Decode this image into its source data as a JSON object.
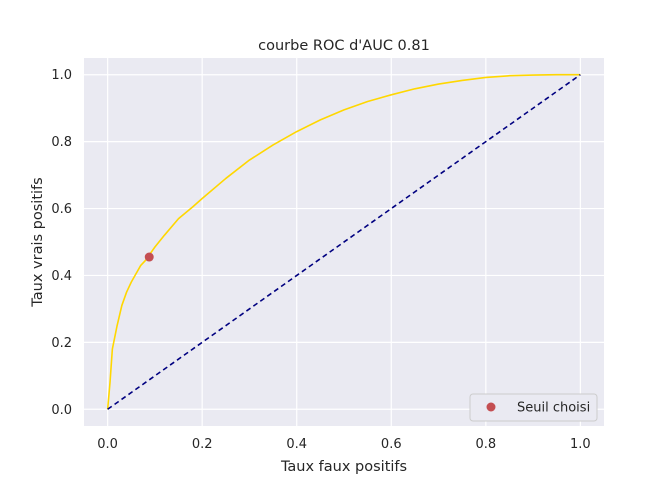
{
  "chart_data": {
    "type": "line",
    "title": "courbe ROC d'AUC 0.81",
    "xlabel": "Taux faux positifs",
    "ylabel": "Taux vrais positifs",
    "xlim": [
      -0.05,
      1.05
    ],
    "ylim": [
      -0.05,
      1.05
    ],
    "xticks": [
      0.0,
      0.2,
      0.4,
      0.6,
      0.8,
      1.0
    ],
    "yticks": [
      0.0,
      0.2,
      0.4,
      0.6,
      0.8,
      1.0
    ],
    "xtick_labels": [
      "0.0",
      "0.2",
      "0.4",
      "0.6",
      "0.8",
      "1.0"
    ],
    "ytick_labels": [
      "0.0",
      "0.2",
      "0.4",
      "0.6",
      "0.8",
      "1.0"
    ],
    "grid": true,
    "legend_position": "bottom-right",
    "colors": {
      "background": "#eaeaf2",
      "grid": "#ffffff",
      "roc": "#ffd700",
      "diagonal": "#000080",
      "marker": "#c44e52"
    },
    "series": [
      {
        "style": "solid",
        "color": "#ffd700",
        "x": [
          0.0,
          0.005,
          0.01,
          0.02,
          0.03,
          0.04,
          0.05,
          0.06,
          0.07,
          0.08,
          0.09,
          0.1,
          0.12,
          0.15,
          0.18,
          0.2,
          0.25,
          0.3,
          0.35,
          0.4,
          0.45,
          0.5,
          0.55,
          0.6,
          0.65,
          0.7,
          0.75,
          0.8,
          0.85,
          0.9,
          0.95,
          1.0
        ],
        "y": [
          0.0,
          0.08,
          0.18,
          0.25,
          0.31,
          0.35,
          0.38,
          0.405,
          0.43,
          0.445,
          0.465,
          0.485,
          0.52,
          0.57,
          0.605,
          0.63,
          0.69,
          0.745,
          0.79,
          0.83,
          0.865,
          0.895,
          0.92,
          0.94,
          0.958,
          0.972,
          0.983,
          0.992,
          0.997,
          0.999,
          1.0,
          1.0
        ]
      },
      {
        "style": "dashed",
        "color": "#000080",
        "x": [
          0.0,
          1.0
        ],
        "y": [
          0.0,
          1.0
        ]
      }
    ],
    "marker": {
      "name": "Seuil choisi",
      "x": 0.088,
      "y": 0.455,
      "color": "#c44e52"
    }
  }
}
